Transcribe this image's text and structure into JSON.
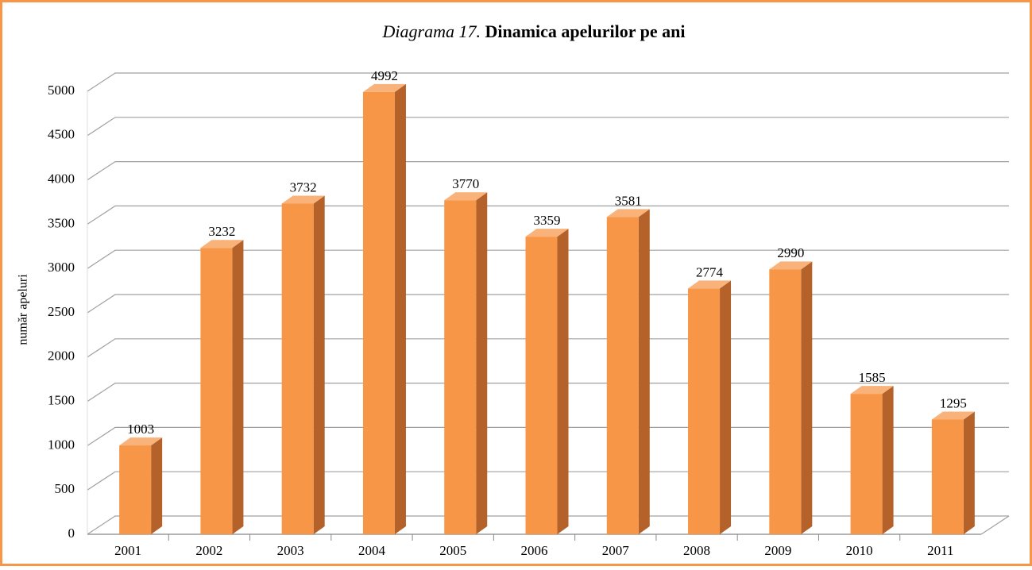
{
  "chart_data": {
    "type": "bar",
    "title_number": "Diagrama 17.",
    "title": "Dinamica apelurilor pe ani",
    "y_label": "număr apeluri",
    "categories": [
      "2001",
      "2002",
      "2003",
      "2004",
      "2005",
      "2006",
      "2007",
      "2008",
      "2009",
      "2010",
      "2011"
    ],
    "values": [
      1003,
      3232,
      3732,
      4992,
      3770,
      3359,
      3581,
      2774,
      2990,
      1585,
      1295
    ],
    "color": "#f79646",
    "ylim": [
      0,
      5000
    ],
    "yticks": [
      0,
      500,
      1000,
      1500,
      2000,
      2500,
      3000,
      3500,
      4000,
      4500,
      5000
    ],
    "grid": true
  }
}
